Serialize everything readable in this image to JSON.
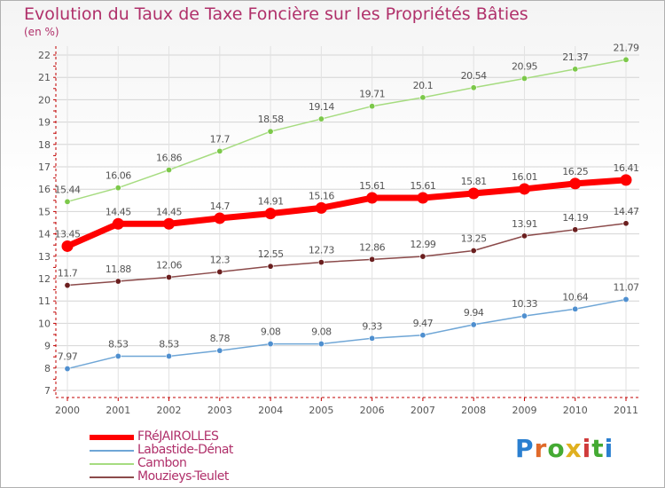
{
  "title": "Evolution du Taux de Taxe Foncière sur les Propriétés Bâties",
  "unit": "(en %)",
  "logo": {
    "text": "Proxiti",
    "letters": [
      "P",
      "r",
      "o",
      "x",
      "i",
      "t",
      "i"
    ]
  },
  "colors": {
    "title": "#b0306a",
    "axis": "#c00000",
    "grid": "#d0d0d0",
    "label": "#555555"
  },
  "chart_data": {
    "type": "line",
    "title": "Evolution du Taux de Taxe Foncière sur les Propriétés Bâties",
    "ylabel": "(en %)",
    "xlabel": "",
    "x": [
      "2000",
      "2001",
      "2002",
      "2003",
      "2004",
      "2005",
      "2006",
      "2007",
      "2008",
      "2009",
      "2010",
      "2011"
    ],
    "ylim": [
      7,
      22
    ],
    "yticks": [
      "7",
      "8",
      "9",
      "10",
      "11",
      "12",
      "13",
      "14",
      "15",
      "16",
      "17",
      "18",
      "19",
      "20",
      "21",
      "22"
    ],
    "grid": true,
    "legend_position": "bottom-left",
    "series": [
      {
        "name": "FRéJAIROLLES",
        "color": "#ff0000",
        "marker": "#ff0000",
        "emphasis": true,
        "values": [
          13.45,
          14.45,
          14.45,
          14.7,
          14.91,
          15.16,
          15.61,
          15.61,
          15.81,
          16.01,
          16.25,
          16.41
        ],
        "labels": [
          "13.45",
          "14.45",
          "14.45",
          "14.7",
          "14.91",
          "15.16",
          "15.61",
          "15.61",
          "15.81",
          "16.01",
          "16.25",
          "16.41"
        ]
      },
      {
        "name": "Labastide-Dénat",
        "color": "#6fa6d6",
        "marker": "#4f8fcf",
        "emphasis": false,
        "values": [
          7.97,
          8.53,
          8.53,
          8.78,
          9.08,
          9.08,
          9.33,
          9.47,
          9.94,
          10.33,
          10.64,
          11.07
        ],
        "labels": [
          "7.97",
          "8.53",
          "8.53",
          "8.78",
          "9.08",
          "9.08",
          "9.33",
          "9.47",
          "9.94",
          "10.33",
          "10.64",
          "11.07"
        ]
      },
      {
        "name": "Cambon",
        "color": "#a6dc80",
        "marker": "#7cc84a",
        "emphasis": false,
        "values": [
          15.44,
          16.06,
          16.86,
          17.7,
          18.58,
          19.14,
          19.71,
          20.1,
          20.54,
          20.95,
          21.37,
          21.79
        ],
        "labels": [
          "15.44",
          "16.06",
          "16.86",
          "17.7",
          "18.58",
          "19.14",
          "19.71",
          "20.1",
          "20.54",
          "20.95",
          "21.37",
          "21.79"
        ]
      },
      {
        "name": "Mouzieys-Teulet",
        "color": "#8b4a4a",
        "marker": "#6b1f1f",
        "emphasis": false,
        "values": [
          11.7,
          11.88,
          12.06,
          12.3,
          12.55,
          12.73,
          12.86,
          12.99,
          13.25,
          13.91,
          14.19,
          14.47
        ],
        "labels": [
          "11.7",
          "11.88",
          "12.06",
          "12.3",
          "12.55",
          "12.73",
          "12.86",
          "12.99",
          "13.25",
          "13.91",
          "14.19",
          "14.47"
        ]
      }
    ]
  }
}
